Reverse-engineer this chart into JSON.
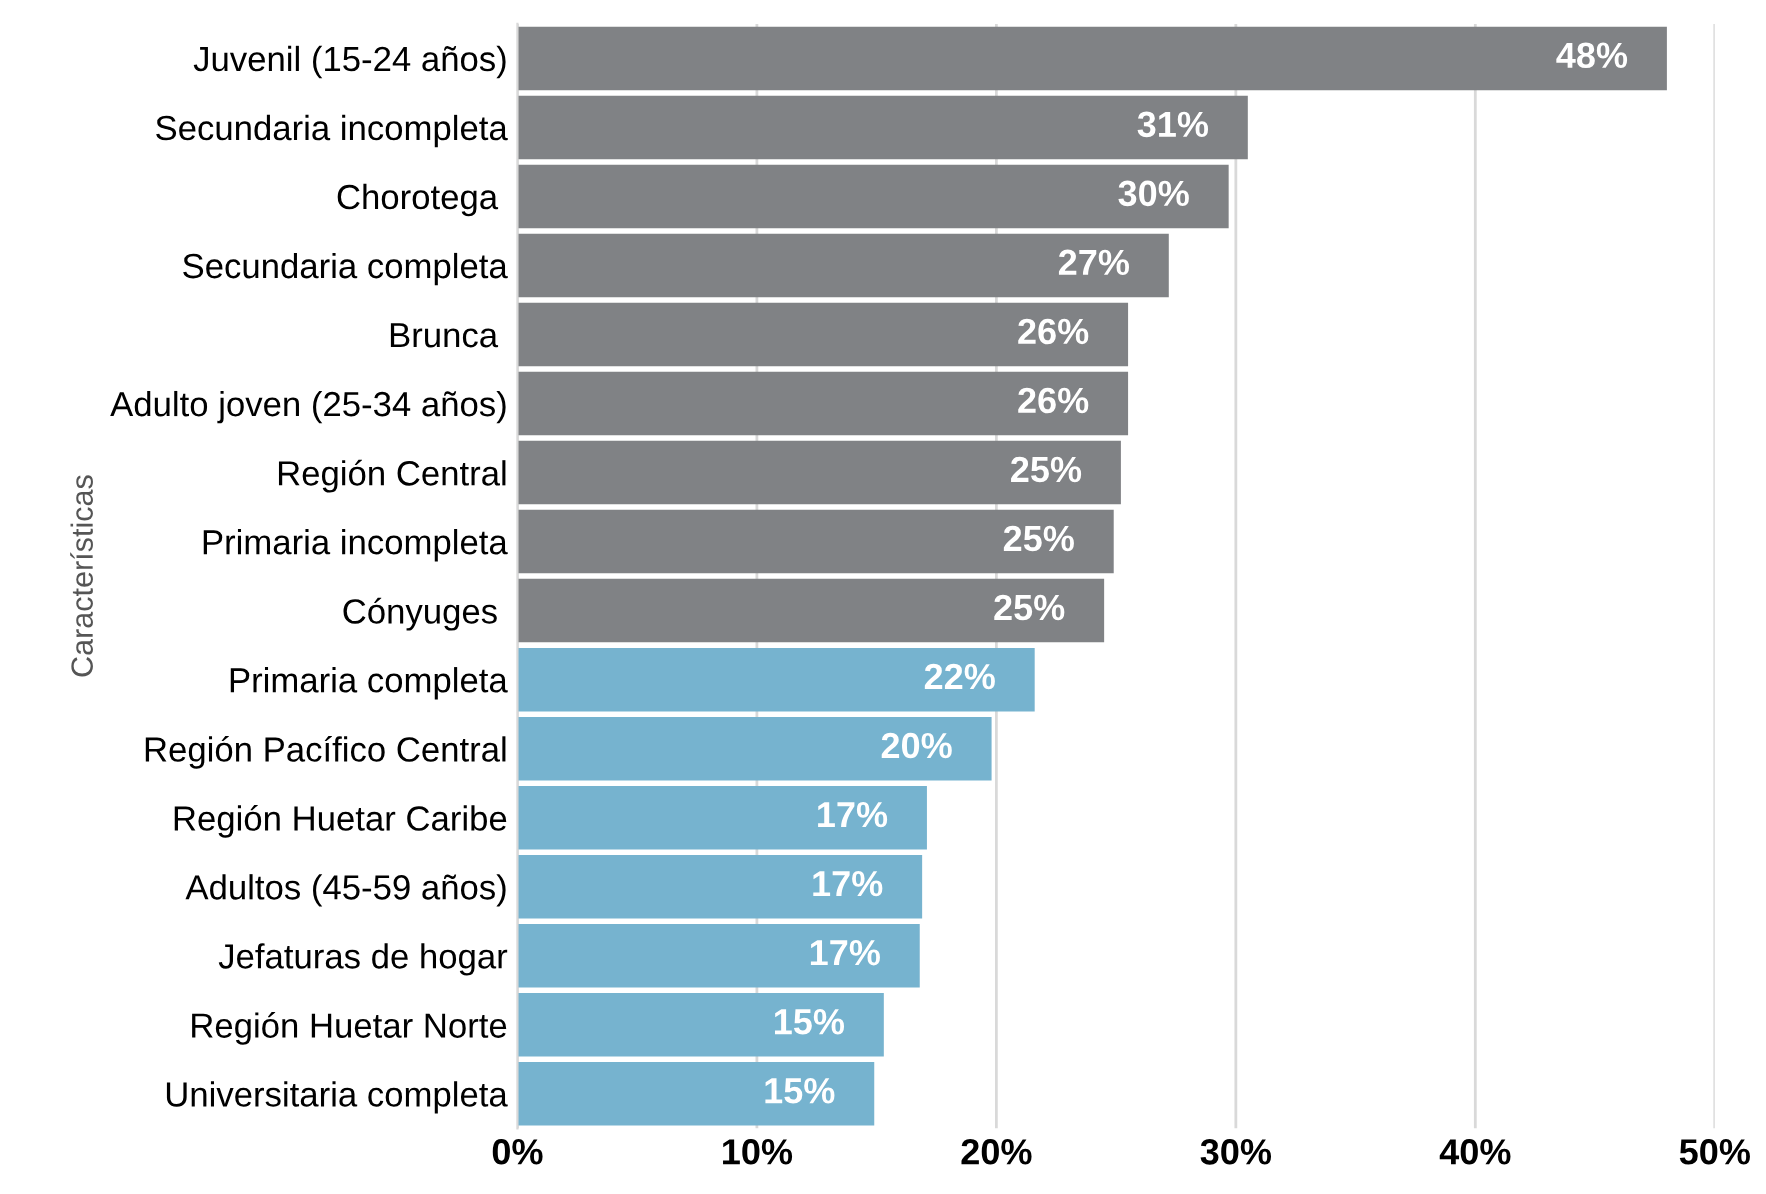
{
  "chart_data": {
    "type": "bar",
    "orientation": "horizontal",
    "ylabel": "Características",
    "categories": [
      "Juvenil (15-24 años)",
      "Secundaria incompleta",
      "Chorotega ",
      "Secundaria completa",
      "Brunca ",
      "Adulto joven (25-34 años)",
      "Región Central",
      "Primaria incompleta",
      "Cónyuges ",
      "Primaria completa",
      "Región Pacífico Central",
      "Región Huetar Caribe",
      "Adultos (45-59 años)",
      "Jefaturas de hogar",
      "Región Huetar Norte",
      "Universitaria completa"
    ],
    "values": [
      48.0,
      30.5,
      29.7,
      27.2,
      25.5,
      25.5,
      25.2,
      24.9,
      24.5,
      21.6,
      19.8,
      17.1,
      16.9,
      16.8,
      15.3,
      14.9
    ],
    "value_labels": [
      "48%",
      "31%",
      "30%",
      "27%",
      "26%",
      "26%",
      "25%",
      "25%",
      "25%",
      "22%",
      "20%",
      "17%",
      "17%",
      "17%",
      "15%",
      "15%"
    ],
    "colors": [
      "#808285",
      "#808285",
      "#808285",
      "#808285",
      "#808285",
      "#808285",
      "#808285",
      "#808285",
      "#808285",
      "#76b3cf",
      "#76b3cf",
      "#76b3cf",
      "#76b3cf",
      "#76b3cf",
      "#76b3cf",
      "#76b3cf"
    ],
    "xlim": [
      0,
      50
    ],
    "xticks": [
      {
        "value": 0,
        "label": "0%"
      },
      {
        "value": 10,
        "label": "10%"
      },
      {
        "value": 20,
        "label": "20%"
      },
      {
        "value": 30,
        "label": "30%"
      },
      {
        "value": 40,
        "label": "40%"
      },
      {
        "value": 50,
        "label": "50%"
      }
    ],
    "grid": "x",
    "legend": false
  }
}
